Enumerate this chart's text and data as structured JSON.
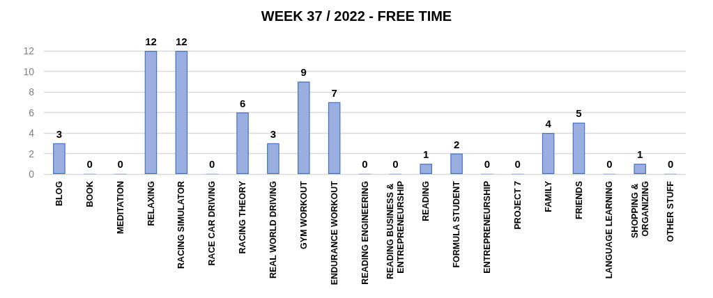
{
  "chart_data": {
    "type": "bar",
    "title": "WEEK 37 / 2022 - FREE TIME",
    "categories": [
      "BLOG",
      "BOOK",
      "MEDITATION",
      "RELAXING",
      "RACING SIMULATOR",
      "RACE CAR DRIVING",
      "RACING THEORY",
      "REAL WORLD DRIVING",
      "GYM WORKOUT",
      "ENDURANCE WORKOUT",
      "READING ENGINEERING",
      "READING BUSINESS & ENTREPRENEURSHIP",
      "READING",
      "FORMULA STUDENT",
      "ENTREPRENEURSHIP",
      "PROJECT 7",
      "FAMILY",
      "FRIENDS",
      "LANGUAGE LEARNING",
      "SHOPPING & ORGANIZING",
      "OTHER STUFF"
    ],
    "values": [
      3,
      0,
      0,
      12,
      12,
      0,
      6,
      3,
      9,
      7,
      0,
      0,
      1,
      2,
      0,
      0,
      4,
      5,
      0,
      1,
      0
    ],
    "color": "#9aaee0",
    "ylim": [
      0,
      12
    ],
    "yticks": [
      0,
      2,
      4,
      6,
      8,
      10,
      12
    ],
    "grid": true,
    "data_labels": true
  }
}
